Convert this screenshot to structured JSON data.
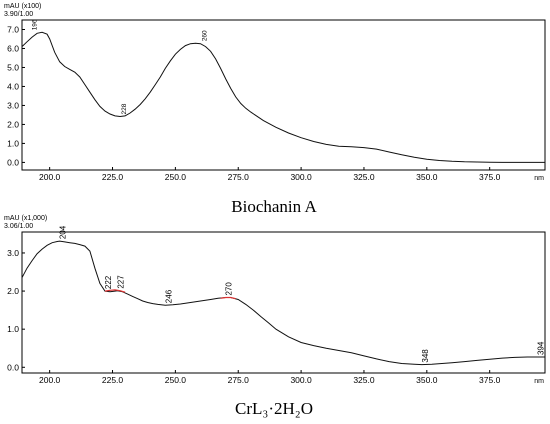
{
  "chart_data": [
    {
      "type": "line",
      "caption": "Biochanin A",
      "ylabel": "mAU (x100)",
      "scale_label": "3.90/1.00",
      "xlabel": "nm",
      "xlim": [
        189,
        397
      ],
      "ylim": [
        -0.4,
        7.5
      ],
      "x_ticks": [
        "200.0",
        "225.0",
        "250.0",
        "275.0",
        "300.0",
        "325.0",
        "350.0",
        "375.0"
      ],
      "x_tick_values": [
        200,
        225,
        250,
        275,
        300,
        325,
        350,
        375
      ],
      "y_ticks": [
        "0.0",
        "1.0",
        "2.0",
        "3.0",
        "4.0",
        "5.0",
        "6.0",
        "7.0"
      ],
      "y_tick_values": [
        0,
        1,
        2,
        3,
        4,
        5,
        6,
        7
      ],
      "series": [
        {
          "x": [
            189,
            191,
            193,
            195,
            197,
            199,
            200,
            202,
            204,
            206,
            208,
            210,
            212,
            214,
            216,
            218,
            220,
            222,
            224,
            226,
            228,
            230,
            232,
            234,
            236,
            238,
            240,
            242,
            244,
            246,
            248,
            250,
            252,
            254,
            256,
            258,
            260,
            262,
            264,
            266,
            268,
            270,
            272,
            274,
            276,
            278,
            280,
            285,
            290,
            295,
            300,
            305,
            310,
            315,
            320,
            325,
            330,
            335,
            340,
            345,
            350,
            355,
            360,
            365,
            370,
            375,
            380,
            385,
            390,
            395,
            397
          ],
          "y": [
            6.1,
            6.35,
            6.6,
            6.8,
            6.85,
            6.75,
            6.5,
            5.8,
            5.3,
            5.05,
            4.9,
            4.75,
            4.5,
            4.1,
            3.7,
            3.3,
            2.95,
            2.7,
            2.55,
            2.45,
            2.42,
            2.45,
            2.6,
            2.8,
            3.05,
            3.35,
            3.7,
            4.1,
            4.5,
            4.95,
            5.35,
            5.7,
            5.95,
            6.15,
            6.25,
            6.28,
            6.25,
            6.1,
            5.85,
            5.45,
            4.95,
            4.4,
            3.9,
            3.45,
            3.1,
            2.85,
            2.65,
            2.2,
            1.85,
            1.55,
            1.3,
            1.1,
            0.95,
            0.85,
            0.82,
            0.78,
            0.7,
            0.55,
            0.4,
            0.27,
            0.17,
            0.1,
            0.06,
            0.03,
            0.02,
            0.01,
            0.0,
            0.0,
            0.0,
            0.0,
            0.0
          ]
        }
      ],
      "peak_labels": [
        {
          "text": "196",
          "x": 196,
          "y": 6.85,
          "side": "left"
        },
        {
          "text": "228",
          "x": 228,
          "y": 2.42,
          "side": "right"
        },
        {
          "text": "260",
          "x": 260,
          "y": 6.28,
          "side": "right"
        }
      ]
    },
    {
      "type": "line",
      "caption": "CrL₃·2H₂O",
      "ylabel": "mAU (x1,000)",
      "scale_label": "3.06/1.00",
      "xlabel": "nm",
      "xlim": [
        189,
        397
      ],
      "ylim": [
        -0.15,
        3.55
      ],
      "x_ticks": [
        "200.0",
        "225.0",
        "250.0",
        "275.0",
        "300.0",
        "325.0",
        "350.0",
        "375.0"
      ],
      "x_tick_values": [
        200,
        225,
        250,
        275,
        300,
        325,
        350,
        375
      ],
      "y_ticks": [
        "0.0",
        "1.0",
        "2.0",
        "3.0"
      ],
      "y_tick_values": [
        0,
        1,
        2,
        3
      ],
      "series": [
        {
          "x": [
            189,
            191,
            193,
            195,
            197,
            199,
            201,
            203,
            204,
            206,
            208,
            210,
            212,
            214,
            216,
            218,
            220,
            222,
            224,
            226,
            227,
            229,
            231,
            233,
            235,
            237,
            239,
            241,
            243,
            246,
            249,
            252,
            255,
            258,
            261,
            264,
            267,
            270,
            272,
            275,
            278,
            281,
            284,
            287,
            290,
            295,
            300,
            305,
            310,
            315,
            320,
            325,
            330,
            335,
            340,
            345,
            348,
            352,
            356,
            360,
            365,
            370,
            375,
            380,
            385,
            390,
            394,
            397
          ],
          "y": [
            2.35,
            2.6,
            2.8,
            2.98,
            3.1,
            3.2,
            3.27,
            3.3,
            3.31,
            3.29,
            3.27,
            3.25,
            3.22,
            3.18,
            3.05,
            2.6,
            2.2,
            2.0,
            1.98,
            2.0,
            2.01,
            1.98,
            1.92,
            1.86,
            1.8,
            1.74,
            1.7,
            1.67,
            1.65,
            1.63,
            1.64,
            1.66,
            1.69,
            1.72,
            1.75,
            1.78,
            1.81,
            1.83,
            1.83,
            1.78,
            1.65,
            1.5,
            1.33,
            1.17,
            1.0,
            0.8,
            0.65,
            0.57,
            0.5,
            0.44,
            0.38,
            0.3,
            0.22,
            0.15,
            0.1,
            0.08,
            0.07,
            0.08,
            0.1,
            0.12,
            0.15,
            0.18,
            0.21,
            0.24,
            0.26,
            0.27,
            0.27,
            0.27
          ]
        }
      ],
      "peak_labels": [
        {
          "text": "204",
          "x": 204,
          "y": 3.31,
          "side": "right"
        },
        {
          "text": "222",
          "x": 222,
          "y": 2.0,
          "side": "right"
        },
        {
          "text": "227",
          "x": 227,
          "y": 2.01,
          "side": "right"
        },
        {
          "text": "246",
          "x": 246,
          "y": 1.63,
          "side": "right"
        },
        {
          "text": "270",
          "x": 270,
          "y": 1.83,
          "side": "right"
        },
        {
          "text": "348",
          "x": 348,
          "y": 0.07,
          "side": "right"
        },
        {
          "text": "394",
          "x": 394,
          "y": 0.27,
          "side": "right"
        }
      ],
      "red_marks": [
        {
          "x": [
            222,
            224,
            226,
            228,
            230
          ],
          "y": [
            2.0,
            2.02,
            2.03,
            2.01,
            1.97
          ]
        },
        {
          "x": [
            268,
            270,
            272,
            274
          ],
          "y": [
            1.81,
            1.83,
            1.83,
            1.8
          ]
        }
      ]
    }
  ]
}
